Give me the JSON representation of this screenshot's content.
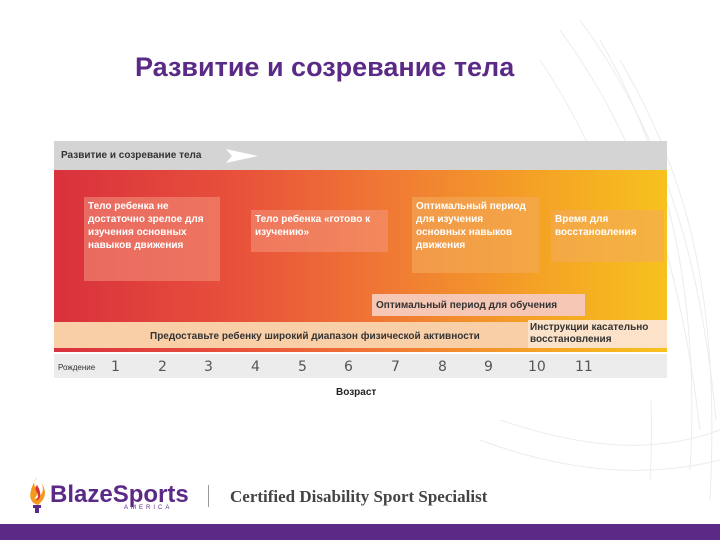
{
  "slide_title": "Развитие и созревание тела",
  "diagram": {
    "header": "Развитие и созревание тела",
    "box_not_ready": "Тело ребенка не достаточно зрелое для изучения основных навыков движения",
    "box_ready": "Тело ребенка «готово к изучению»",
    "box_optimal": "Оптимальный период для изучения основных навыков движения",
    "box_recovery": "Время для восстановления",
    "band_optimal_learning": "Оптимальный период для обучения",
    "band_wide_range": "Предоставьте ребенку широкий диапазон физической активности",
    "band_instructions": "Инструкции касательно восстановления",
    "birth_label": "Рождение",
    "ticks": [
      "1",
      "2",
      "3",
      "4",
      "5",
      "6",
      "7",
      "8",
      "9",
      "10",
      "11"
    ],
    "x_label": "Возраст",
    "colors": {
      "gradient_start": "#d9313d",
      "gradient_end": "#f7c21e",
      "brand": "#5b2a86"
    }
  },
  "footer": {
    "logo_icon": "torch-flame-icon",
    "logo_text": "BlazeSports",
    "logo_sub": "AMERICA",
    "certification": "Certified Disability Sport Specialist"
  }
}
